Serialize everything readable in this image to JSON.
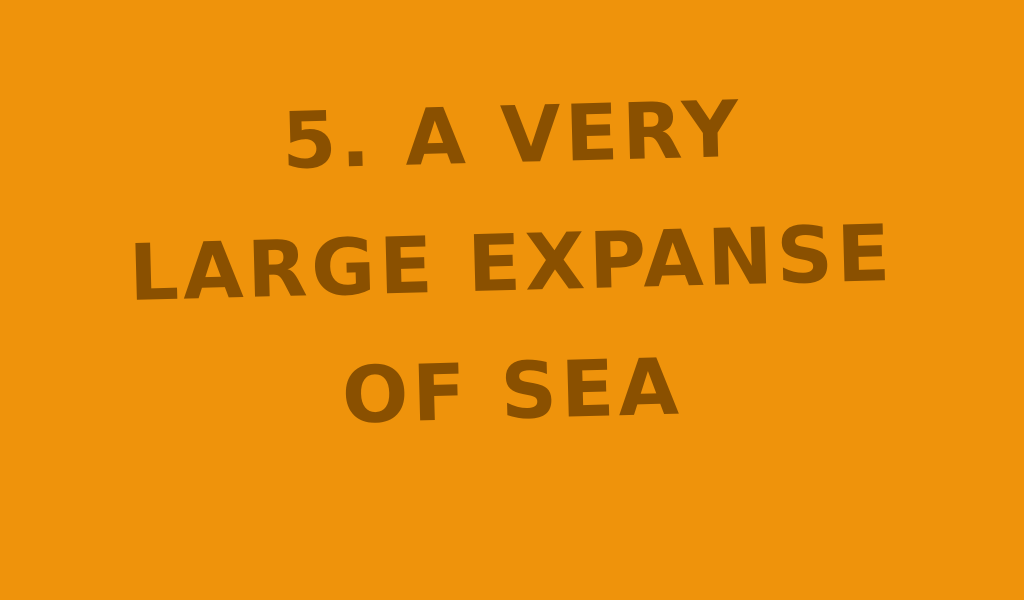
{
  "slide": {
    "background": "#ef930b",
    "text_color": "#8a5000",
    "clue": {
      "lines": [
        "5. A Very",
        "Large Expanse",
        "of Sea"
      ]
    }
  }
}
